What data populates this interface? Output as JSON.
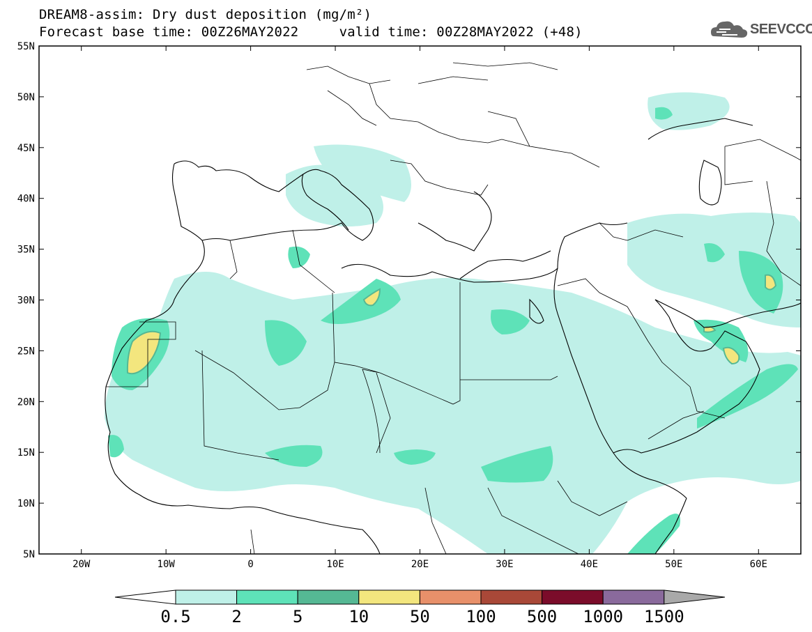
{
  "header": {
    "title_line1": "DREAM8-assim: Dry dust deposition (mg/m²)",
    "title_line2": "Forecast base time: 00Z26MAY2022     valid time: 00Z28MAY2022 (+48)",
    "logo_text": "SEEVCCC",
    "logo_icon": "cloud-icon"
  },
  "map": {
    "projection": "lat-lon",
    "lon_range": [
      -25,
      65
    ],
    "lat_range": [
      5,
      55
    ],
    "lat_ticks": [
      {
        "value": 55,
        "label": "55N"
      },
      {
        "value": 50,
        "label": "50N"
      },
      {
        "value": 45,
        "label": "45N"
      },
      {
        "value": 40,
        "label": "40N"
      },
      {
        "value": 35,
        "label": "35N"
      },
      {
        "value": 30,
        "label": "30N"
      },
      {
        "value": 25,
        "label": "25N"
      },
      {
        "value": 20,
        "label": "20N"
      },
      {
        "value": 15,
        "label": "15N"
      },
      {
        "value": 10,
        "label": "10N"
      },
      {
        "value": 5,
        "label": "5N"
      }
    ],
    "lon_ticks": [
      {
        "value": -20,
        "label": "20W"
      },
      {
        "value": -10,
        "label": "10W"
      },
      {
        "value": 0,
        "label": "0"
      },
      {
        "value": 10,
        "label": "10E"
      },
      {
        "value": 20,
        "label": "20E"
      },
      {
        "value": 30,
        "label": "30E"
      },
      {
        "value": 40,
        "label": "40E"
      },
      {
        "value": 50,
        "label": "50E"
      },
      {
        "value": 60,
        "label": "60E"
      }
    ]
  },
  "legend": {
    "levels": [
      "0.5",
      "2",
      "5",
      "10",
      "50",
      "100",
      "500",
      "1000",
      "1500"
    ],
    "colors": [
      "#ffffff",
      "#bff0e8",
      "#5ee2b8",
      "#55b894",
      "#f3e67e",
      "#e8906a",
      "#a94838",
      "#7b0c2a",
      "#8a6a9c",
      "#a9a9a9"
    ]
  }
}
